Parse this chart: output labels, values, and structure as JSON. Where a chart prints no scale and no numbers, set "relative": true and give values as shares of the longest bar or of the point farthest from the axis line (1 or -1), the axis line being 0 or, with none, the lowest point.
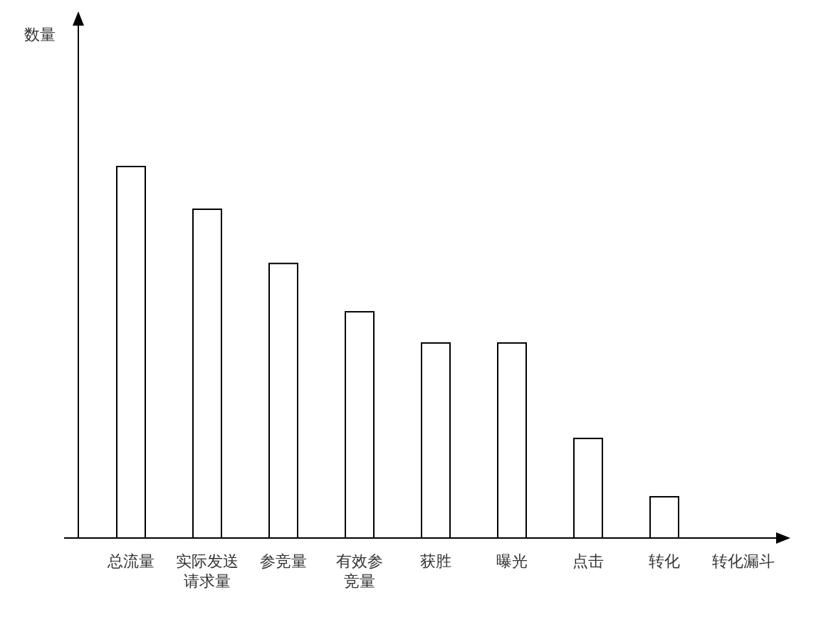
{
  "chart_data": {
    "type": "bar",
    "relative": true,
    "xlabel": "转化漏斗",
    "annotations": [
      "数量"
    ],
    "categories": [
      "总流量",
      "实际发送请求量",
      "参竞量",
      "有效参竞量",
      "获胜",
      "曝光",
      "点击",
      "转化"
    ],
    "values": [
      1,
      0.885,
      0.739,
      0.609,
      0.525,
      0.525,
      0.268,
      0.111
    ],
    "color": "#ffffff"
  }
}
